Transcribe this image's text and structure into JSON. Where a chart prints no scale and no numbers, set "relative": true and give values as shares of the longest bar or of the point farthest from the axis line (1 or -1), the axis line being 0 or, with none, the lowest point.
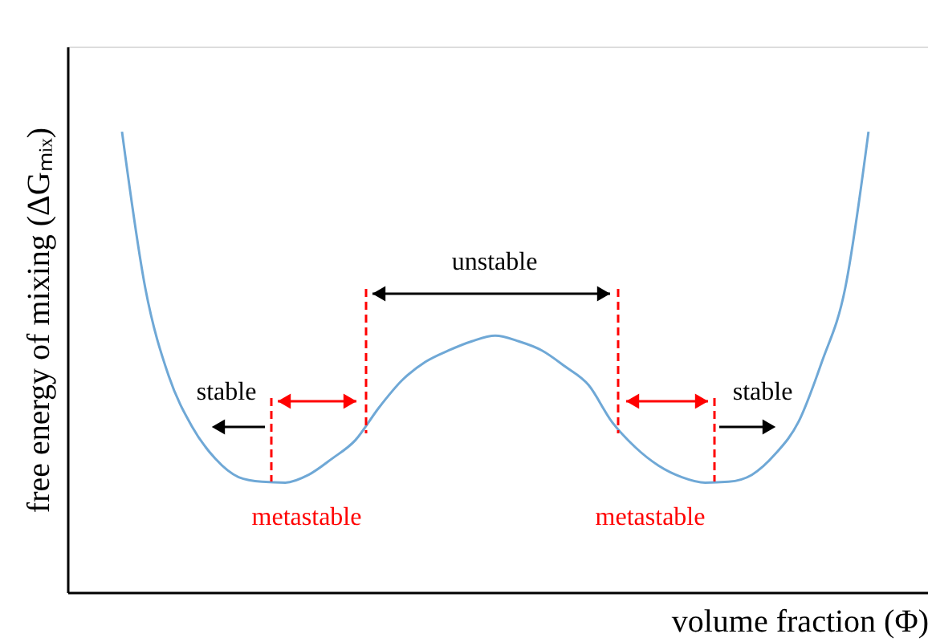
{
  "chart_data": {
    "type": "line",
    "relative": true,
    "xlabel": "volume fraction (Φ)",
    "ylabel": "free energy of mixing (ΔGₘᵢₓ)",
    "categories": [
      null,
      null,
      null,
      null,
      null,
      null,
      null,
      null,
      null,
      null,
      null,
      null,
      null,
      null,
      null,
      null,
      null,
      null,
      null,
      null,
      null,
      null,
      null,
      null,
      null,
      null,
      null,
      null,
      null,
      null,
      null,
      null,
      null
    ],
    "series": [
      {
        "color": "#6fa8d6",
        "values": [
          1.0,
          0.66,
          0.47,
          0.36,
          0.29,
          0.25,
          0.24,
          0.238,
          0.255,
          0.29,
          0.33,
          0.4,
          0.46,
          0.5,
          0.525,
          0.545,
          0.557,
          0.545,
          0.525,
          0.49,
          0.45,
          0.37,
          0.315,
          0.275,
          0.25,
          0.238,
          0.24,
          0.255,
          0.3,
          0.37,
          0.5,
          0.66,
          1.0
        ]
      }
    ],
    "annotations": [
      "unstable",
      "stable",
      "stable",
      "metastable",
      "metastable"
    ],
    "grid": false,
    "marker": "none",
    "line_style": "solid"
  }
}
